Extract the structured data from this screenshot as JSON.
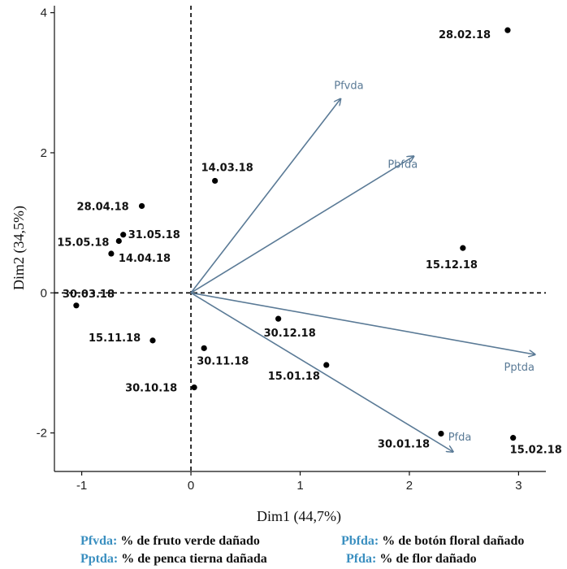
{
  "chart_data": {
    "type": "scatter",
    "xlabel": "Dim1 (44,7%)",
    "ylabel": "Dim2 (34,5%)",
    "xlim": [
      -1.25,
      3.25
    ],
    "ylim": [
      -2.55,
      4.1
    ],
    "xticks": [
      -1,
      0,
      1,
      2,
      3
    ],
    "yticks": [
      -2,
      0,
      2,
      4
    ],
    "points": [
      {
        "label": "28.02.18",
        "x": 2.9,
        "y": 3.75
      },
      {
        "label": "14.03.18",
        "x": 0.22,
        "y": 1.6
      },
      {
        "label": "28.04.18",
        "x": -0.45,
        "y": 1.24
      },
      {
        "label": "31.05.18",
        "x": -0.62,
        "y": 0.83
      },
      {
        "label": "15.05.18",
        "x": -0.66,
        "y": 0.74
      },
      {
        "label": "14.04.18",
        "x": -0.73,
        "y": 0.56
      },
      {
        "label": "30.03.18",
        "x": -1.05,
        "y": -0.18
      },
      {
        "label": "15.11.18",
        "x": -0.35,
        "y": -0.68
      },
      {
        "label": "30.11.18",
        "x": 0.12,
        "y": -0.79
      },
      {
        "label": "30.10.18",
        "x": 0.03,
        "y": -1.35
      },
      {
        "label": "30.12.18",
        "x": 0.8,
        "y": -0.37
      },
      {
        "label": "15.01.18",
        "x": 1.24,
        "y": -1.03
      },
      {
        "label": "15.12.18",
        "x": 2.49,
        "y": 0.64
      },
      {
        "label": "30.01.18",
        "x": 2.29,
        "y": -2.01
      },
      {
        "label": "15.02.18",
        "x": 2.95,
        "y": -2.07
      }
    ],
    "vectors": [
      {
        "name": "Pfvda",
        "x": 1.37,
        "y": 2.77
      },
      {
        "name": "Pbfda",
        "x": 2.04,
        "y": 1.95
      },
      {
        "name": "Pptda",
        "x": 3.15,
        "y": -0.88
      },
      {
        "name": "Pfda",
        "x": 2.4,
        "y": -2.27
      }
    ]
  },
  "legend": [
    {
      "key": "Pfvda:",
      "text": "% de fruto verde dañado"
    },
    {
      "key": "Pbfda:",
      "text": "% de botón floral dañado"
    },
    {
      "key": "Pptda:",
      "text": "% de penca tierna dañada"
    },
    {
      "key": "Pfda:",
      "text": "% de flor dañado"
    }
  ],
  "colors": {
    "vector": "#5a7a96",
    "point": "#000000",
    "legend_key": "#3a8fc0"
  }
}
